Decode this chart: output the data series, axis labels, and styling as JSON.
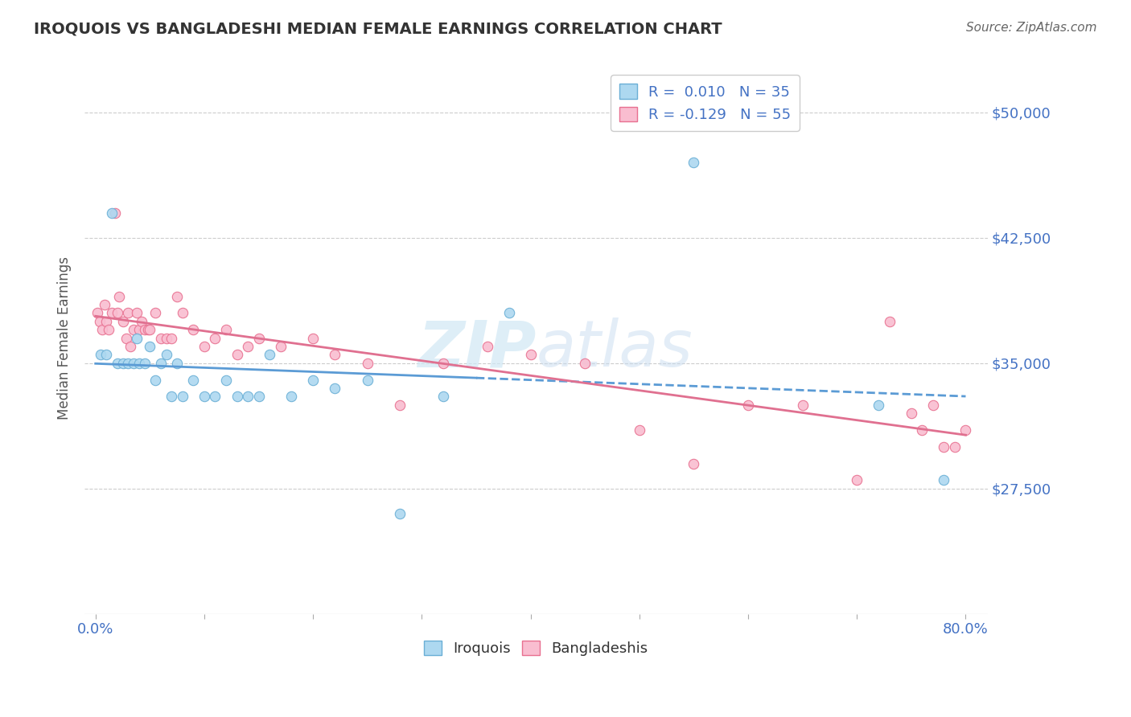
{
  "title": "IROQUOIS VS BANGLADESHI MEDIAN FEMALE EARNINGS CORRELATION CHART",
  "source": "Source: ZipAtlas.com",
  "ylabel": "Median Female Earnings",
  "xlim": [
    -0.01,
    0.82
  ],
  "ylim": [
    20000,
    53000
  ],
  "yticks": [
    27500,
    35000,
    42500,
    50000
  ],
  "ytick_labels": [
    "$27,500",
    "$35,000",
    "$42,500",
    "$50,000"
  ],
  "xticks": [
    0.0,
    0.1,
    0.2,
    0.3,
    0.4,
    0.5,
    0.6,
    0.7,
    0.8
  ],
  "xtick_labels": [
    "0.0%",
    "",
    "",
    "",
    "",
    "",
    "",
    "",
    "80.0%"
  ],
  "legend_labels": [
    "R =  0.010   N = 35",
    "R = -0.129   N = 55"
  ],
  "iroquois_color": "#ADD8F0",
  "bangladeshi_color": "#F9BDD0",
  "iroquois_edge_color": "#6AAFD6",
  "bangladeshi_edge_color": "#E87090",
  "iroquois_line_color": "#5B9BD5",
  "bangladeshi_line_color": "#E07090",
  "background_color": "#FFFFFF",
  "grid_color": "#CCCCCC",
  "title_color": "#333333",
  "axis_label_color": "#4472C4",
  "iroquois_x": [
    0.005,
    0.01,
    0.015,
    0.02,
    0.025,
    0.03,
    0.035,
    0.038,
    0.04,
    0.045,
    0.05,
    0.055,
    0.06,
    0.065,
    0.07,
    0.075,
    0.08,
    0.09,
    0.1,
    0.11,
    0.12,
    0.13,
    0.14,
    0.15,
    0.16,
    0.18,
    0.2,
    0.22,
    0.25,
    0.28,
    0.32,
    0.38,
    0.55,
    0.72,
    0.78
  ],
  "iroquois_y": [
    35500,
    35500,
    44000,
    35000,
    35000,
    35000,
    35000,
    36500,
    35000,
    35000,
    36000,
    34000,
    35000,
    35500,
    33000,
    35000,
    33000,
    34000,
    33000,
    33000,
    34000,
    33000,
    33000,
    33000,
    35500,
    33000,
    34000,
    33500,
    34000,
    26000,
    33000,
    38000,
    47000,
    32500,
    28000
  ],
  "bangladeshi_x": [
    0.002,
    0.004,
    0.006,
    0.008,
    0.01,
    0.012,
    0.015,
    0.018,
    0.02,
    0.022,
    0.025,
    0.028,
    0.03,
    0.032,
    0.035,
    0.038,
    0.04,
    0.042,
    0.045,
    0.048,
    0.05,
    0.055,
    0.06,
    0.065,
    0.07,
    0.075,
    0.08,
    0.09,
    0.1,
    0.11,
    0.12,
    0.13,
    0.14,
    0.15,
    0.17,
    0.2,
    0.22,
    0.25,
    0.28,
    0.32,
    0.36,
    0.4,
    0.45,
    0.5,
    0.55,
    0.6,
    0.65,
    0.7,
    0.73,
    0.75,
    0.76,
    0.77,
    0.78,
    0.79,
    0.8
  ],
  "bangladeshi_y": [
    38000,
    37500,
    37000,
    38500,
    37500,
    37000,
    38000,
    44000,
    38000,
    39000,
    37500,
    36500,
    38000,
    36000,
    37000,
    38000,
    37000,
    37500,
    37000,
    37000,
    37000,
    38000,
    36500,
    36500,
    36500,
    39000,
    38000,
    37000,
    36000,
    36500,
    37000,
    35500,
    36000,
    36500,
    36000,
    36500,
    35500,
    35000,
    32500,
    35000,
    36000,
    35500,
    35000,
    31000,
    29000,
    32500,
    32500,
    28000,
    37500,
    32000,
    31000,
    32500,
    30000,
    30000,
    31000
  ]
}
